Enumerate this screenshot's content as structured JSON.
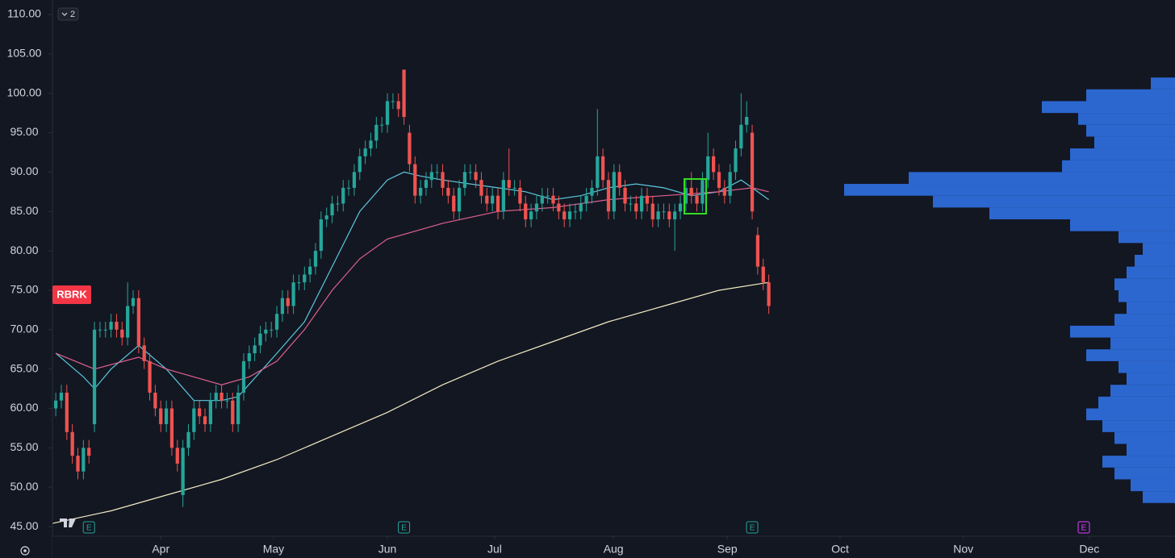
{
  "chart_data": {
    "type": "candlestick",
    "symbol_label": "RBRK",
    "badge": "2",
    "up_color": "#26a69a",
    "down_color": "#ef5350",
    "xlim": [
      -0.6,
      202.5
    ],
    "ylim": [
      43.78,
      111.84
    ],
    "yticks": [
      {
        "value": 45,
        "label": "45.00"
      },
      {
        "value": 50,
        "label": "50.00"
      },
      {
        "value": 55,
        "label": "55.00"
      },
      {
        "value": 60,
        "label": "60.00"
      },
      {
        "value": 65,
        "label": "65.00"
      },
      {
        "value": 70,
        "label": "70.00"
      },
      {
        "value": 75,
        "label": "75.00"
      },
      {
        "value": 80,
        "label": "80.00"
      },
      {
        "value": 85,
        "label": "85.00"
      },
      {
        "value": 90,
        "label": "90.00"
      },
      {
        "value": 95,
        "label": "95.00"
      },
      {
        "value": 100,
        "label": "100.00"
      },
      {
        "value": 105,
        "label": "105.00"
      },
      {
        "value": 110,
        "label": "110.00"
      }
    ],
    "xticks": [
      {
        "value": 19,
        "label": "Apr"
      },
      {
        "value": 39.4,
        "label": "May"
      },
      {
        "value": 60,
        "label": "Jun"
      },
      {
        "value": 79.4,
        "label": "Jul"
      },
      {
        "value": 100.9,
        "label": "Aug"
      },
      {
        "value": 121.5,
        "label": "Sep"
      },
      {
        "value": 141.9,
        "label": "Oct"
      },
      {
        "value": 164.2,
        "label": "Nov"
      },
      {
        "value": 187,
        "label": "Dec"
      }
    ],
    "open": [
      60,
      61,
      62,
      57,
      54,
      52,
      55,
      58,
      70,
      70,
      70,
      71,
      70,
      69,
      73,
      74,
      68,
      66,
      62,
      60,
      58,
      60,
      55,
      49,
      55,
      57,
      60,
      59,
      58,
      61,
      62,
      61,
      61,
      58,
      62,
      66,
      67,
      68,
      69.5,
      70,
      70,
      72,
      74,
      73,
      76,
      76,
      77,
      78,
      80,
      84,
      84.5,
      86,
      86,
      88,
      88,
      90,
      92,
      93,
      94,
      96,
      96,
      99,
      99,
      103,
      95,
      91,
      87,
      88,
      89,
      90,
      90,
      88,
      87,
      85,
      88,
      90,
      90,
      89,
      87,
      86,
      87,
      85,
      89,
      88,
      88,
      86,
      84,
      85,
      86,
      87,
      87,
      86,
      85,
      84,
      85,
      85,
      86,
      87,
      88,
      92,
      89,
      85,
      90,
      88,
      86,
      86,
      85,
      87,
      86,
      84,
      85,
      85,
      84,
      85,
      86,
      88,
      87,
      86,
      89,
      92,
      90,
      88,
      87,
      90,
      93,
      96,
      95,
      82,
      78,
      76
    ],
    "high": [
      62,
      63,
      63,
      58,
      55,
      56,
      56,
      71,
      71,
      71,
      72,
      72,
      71,
      76,
      75,
      75,
      69,
      67,
      63,
      61,
      61,
      61,
      56,
      56,
      58,
      61,
      61,
      60,
      62,
      63,
      63,
      62,
      62,
      63,
      67,
      68,
      69,
      70.5,
      71,
      71,
      73,
      75,
      75,
      77,
      77,
      78,
      79,
      81,
      85,
      85.5,
      87,
      87,
      89,
      89,
      91,
      93,
      94,
      95,
      97,
      97,
      100,
      100,
      100,
      103,
      96,
      92,
      89,
      90,
      91,
      91,
      91,
      89,
      88,
      89,
      91,
      91,
      91,
      90,
      88,
      88,
      88,
      90,
      93,
      89,
      89,
      87,
      86,
      87,
      88,
      88,
      88,
      87,
      86,
      86,
      86,
      87,
      88,
      89,
      98,
      93,
      90,
      91,
      91,
      89,
      87,
      87,
      88,
      88,
      87,
      86,
      86,
      86,
      86,
      87,
      89,
      90,
      88,
      90,
      95,
      93,
      91,
      89,
      91,
      94,
      100,
      99,
      96,
      83,
      79,
      77
    ],
    "low": [
      59,
      60,
      56,
      53,
      51,
      51,
      53,
      57,
      69,
      69,
      69,
      69,
      68,
      68,
      72,
      67,
      65,
      61,
      59,
      57,
      57,
      54,
      52,
      47.5,
      54,
      56,
      58,
      57,
      57,
      60,
      60,
      60,
      57,
      57,
      61,
      65,
      66,
      67,
      68.5,
      69,
      69,
      71,
      72,
      72,
      75,
      75,
      76,
      77,
      79,
      83,
      83.5,
      85,
      85,
      87,
      87,
      89,
      91,
      92,
      93,
      95,
      95,
      98,
      97,
      96,
      90,
      86,
      86,
      87,
      88,
      89,
      87,
      86,
      84,
      84,
      87,
      89,
      88,
      86,
      85,
      85,
      84,
      84,
      87,
      87,
      85,
      83,
      83,
      84,
      85,
      86,
      85,
      84,
      83,
      83,
      84,
      84,
      85,
      86,
      87,
      88,
      84,
      84,
      87,
      85,
      85,
      84,
      84,
      85,
      83,
      83,
      84,
      83,
      80,
      84,
      85,
      86,
      85,
      85,
      88,
      89,
      87,
      86,
      86,
      89,
      92,
      95,
      84,
      77,
      75,
      72
    ],
    "close": [
      61,
      62,
      57,
      54,
      52,
      55,
      54,
      70,
      70,
      70,
      71,
      70,
      69,
      73,
      74,
      68,
      66,
      62,
      60,
      58,
      60,
      55,
      53,
      55,
      57,
      60,
      59,
      58,
      61,
      62,
      61,
      61,
      58,
      62,
      66,
      67,
      68,
      69.5,
      70,
      70,
      72,
      74,
      73,
      76,
      76,
      77,
      78,
      80,
      84,
      84.5,
      86,
      86,
      88,
      88,
      90,
      92,
      93,
      94,
      96,
      96,
      99,
      99,
      98,
      97,
      91,
      87,
      88,
      89,
      90,
      90,
      88,
      87,
      85,
      88,
      90,
      90,
      89,
      87,
      86,
      87,
      85,
      89,
      88,
      88,
      86,
      84,
      85,
      86,
      87,
      87,
      86,
      85,
      84,
      85,
      85,
      86,
      87,
      88,
      92,
      89,
      85,
      90,
      88,
      86,
      86,
      85,
      87,
      86,
      84,
      85,
      85,
      84,
      85,
      86,
      88,
      87,
      86,
      89,
      92,
      90,
      88,
      87,
      90,
      93,
      96,
      97,
      85,
      78,
      76,
      73
    ],
    "lines": [
      {
        "color": "#5bc8dc",
        "x": [
          0,
          5,
          7,
          10,
          15,
          20,
          25,
          30,
          33,
          40,
          45,
          50,
          55,
          60,
          63,
          66,
          70,
          75,
          80,
          85,
          90,
          95,
          100,
          105,
          110,
          115,
          120,
          124,
          126,
          129
        ],
        "values": [
          67,
          64,
          62.5,
          65,
          68,
          65,
          61,
          61,
          61.5,
          67,
          71,
          78,
          85,
          89,
          90,
          89.5,
          89,
          88.5,
          88,
          87.5,
          86.5,
          87,
          88,
          88.5,
          88,
          87,
          87.5,
          89,
          88,
          86.5
        ]
      },
      {
        "color": "#e0608f",
        "x": [
          0,
          7,
          15,
          20,
          25,
          30,
          35,
          40,
          45,
          50,
          55,
          60,
          65,
          70,
          80,
          90,
          100,
          110,
          120,
          126,
          129
        ],
        "values": [
          67,
          65,
          66.5,
          65,
          64,
          63,
          64,
          66,
          70,
          75,
          79,
          81.5,
          82.5,
          83.5,
          85,
          85.5,
          86.5,
          87,
          87.5,
          88,
          87.5
        ]
      },
      {
        "color": "#f3ecc4",
        "x": [
          -0.6,
          0,
          10,
          20,
          30,
          40,
          50,
          60,
          70,
          80,
          90,
          100,
          110,
          120,
          129
        ],
        "values": [
          45.4,
          45.5,
          47,
          49,
          51,
          53.5,
          56.5,
          59.5,
          63,
          66,
          68.5,
          71,
          73,
          75,
          76
        ]
      }
    ],
    "volume_profile": {
      "color": "#2f6fe0",
      "bins": [
        48,
        49.5,
        51,
        52.5,
        54,
        55.5,
        57,
        58.5,
        60,
        61.5,
        63,
        64.5,
        66,
        67.5,
        69,
        70.5,
        72,
        73.5,
        75,
        76.5,
        78,
        79.5,
        81,
        82.5,
        84,
        85.5,
        87,
        88.5,
        90,
        91.5,
        93,
        94.5,
        96,
        97.5,
        99,
        100.5,
        102
      ],
      "values": [
        40,
        55,
        75,
        90,
        60,
        75,
        90,
        110,
        95,
        80,
        60,
        70,
        110,
        80,
        130,
        75,
        60,
        70,
        75,
        60,
        50,
        40,
        70,
        130,
        230,
        300,
        410,
        330,
        140,
        130,
        100,
        110,
        120,
        165,
        110,
        30
      ]
    },
    "events": [
      {
        "x": 6,
        "label": "E",
        "color": "#26a69a"
      },
      {
        "x": 63,
        "label": "E",
        "color": "#26a69a"
      },
      {
        "x": 126,
        "label": "E",
        "color": "#26a69a"
      },
      {
        "x": 186,
        "label": "E",
        "color": "#e040fb"
      }
    ]
  }
}
